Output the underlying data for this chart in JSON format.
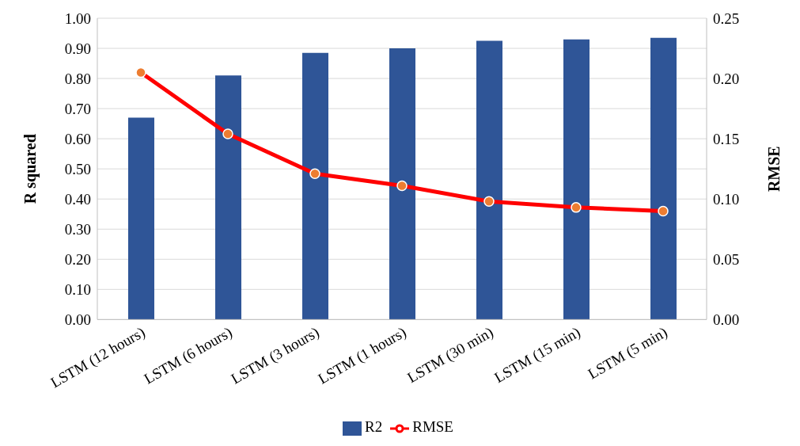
{
  "chart_data": {
    "type": "bar",
    "categories": [
      "LSTM (12 hours)",
      "LSTM (6 hours)",
      "LSTM (3 hours)",
      "LSTM (1 hours)",
      "LSTM (30 min)",
      "LSTM (15 min)",
      "LSTM (5 min)"
    ],
    "series": [
      {
        "name": "R2",
        "color": "#2f5597",
        "values": [
          0.67,
          0.81,
          0.885,
          0.9,
          0.925,
          0.93,
          0.935
        ]
      },
      {
        "name": "RMSE",
        "type": "line",
        "axis": "y2",
        "color": "#ff0000",
        "values": [
          0.205,
          0.154,
          0.121,
          0.111,
          0.098,
          0.093,
          0.09
        ]
      }
    ],
    "ylabel": "R squared",
    "y2label": "RMSE",
    "ylim": [
      0,
      1
    ],
    "yticks": [
      {
        "value": 0,
        "label": "0.00"
      },
      {
        "value": 0.1,
        "label": "0.10"
      },
      {
        "value": 0.2,
        "label": "0.20"
      },
      {
        "value": 0.3,
        "label": "0.30"
      },
      {
        "value": 0.4,
        "label": "0.40"
      },
      {
        "value": 0.5,
        "label": "0.50"
      },
      {
        "value": 0.6,
        "label": "0.60"
      },
      {
        "value": 0.7,
        "label": "0.70"
      },
      {
        "value": 0.8,
        "label": "0.80"
      },
      {
        "value": 0.9,
        "label": "0.90"
      },
      {
        "value": 1,
        "label": "1.00"
      }
    ],
    "y2lim": [
      0,
      0.25
    ],
    "y2ticks": [
      {
        "value": 0,
        "label": "0.00"
      },
      {
        "value": 0.05,
        "label": "0.05"
      },
      {
        "value": 0.1,
        "label": "0.10"
      },
      {
        "value": 0.15,
        "label": "0.15"
      },
      {
        "value": 0.2,
        "label": "0.20"
      },
      {
        "value": 0.25,
        "label": "0.25"
      }
    ],
    "grid": "y",
    "legend": "bottom",
    "marker": "circle",
    "line_style": "solid"
  }
}
